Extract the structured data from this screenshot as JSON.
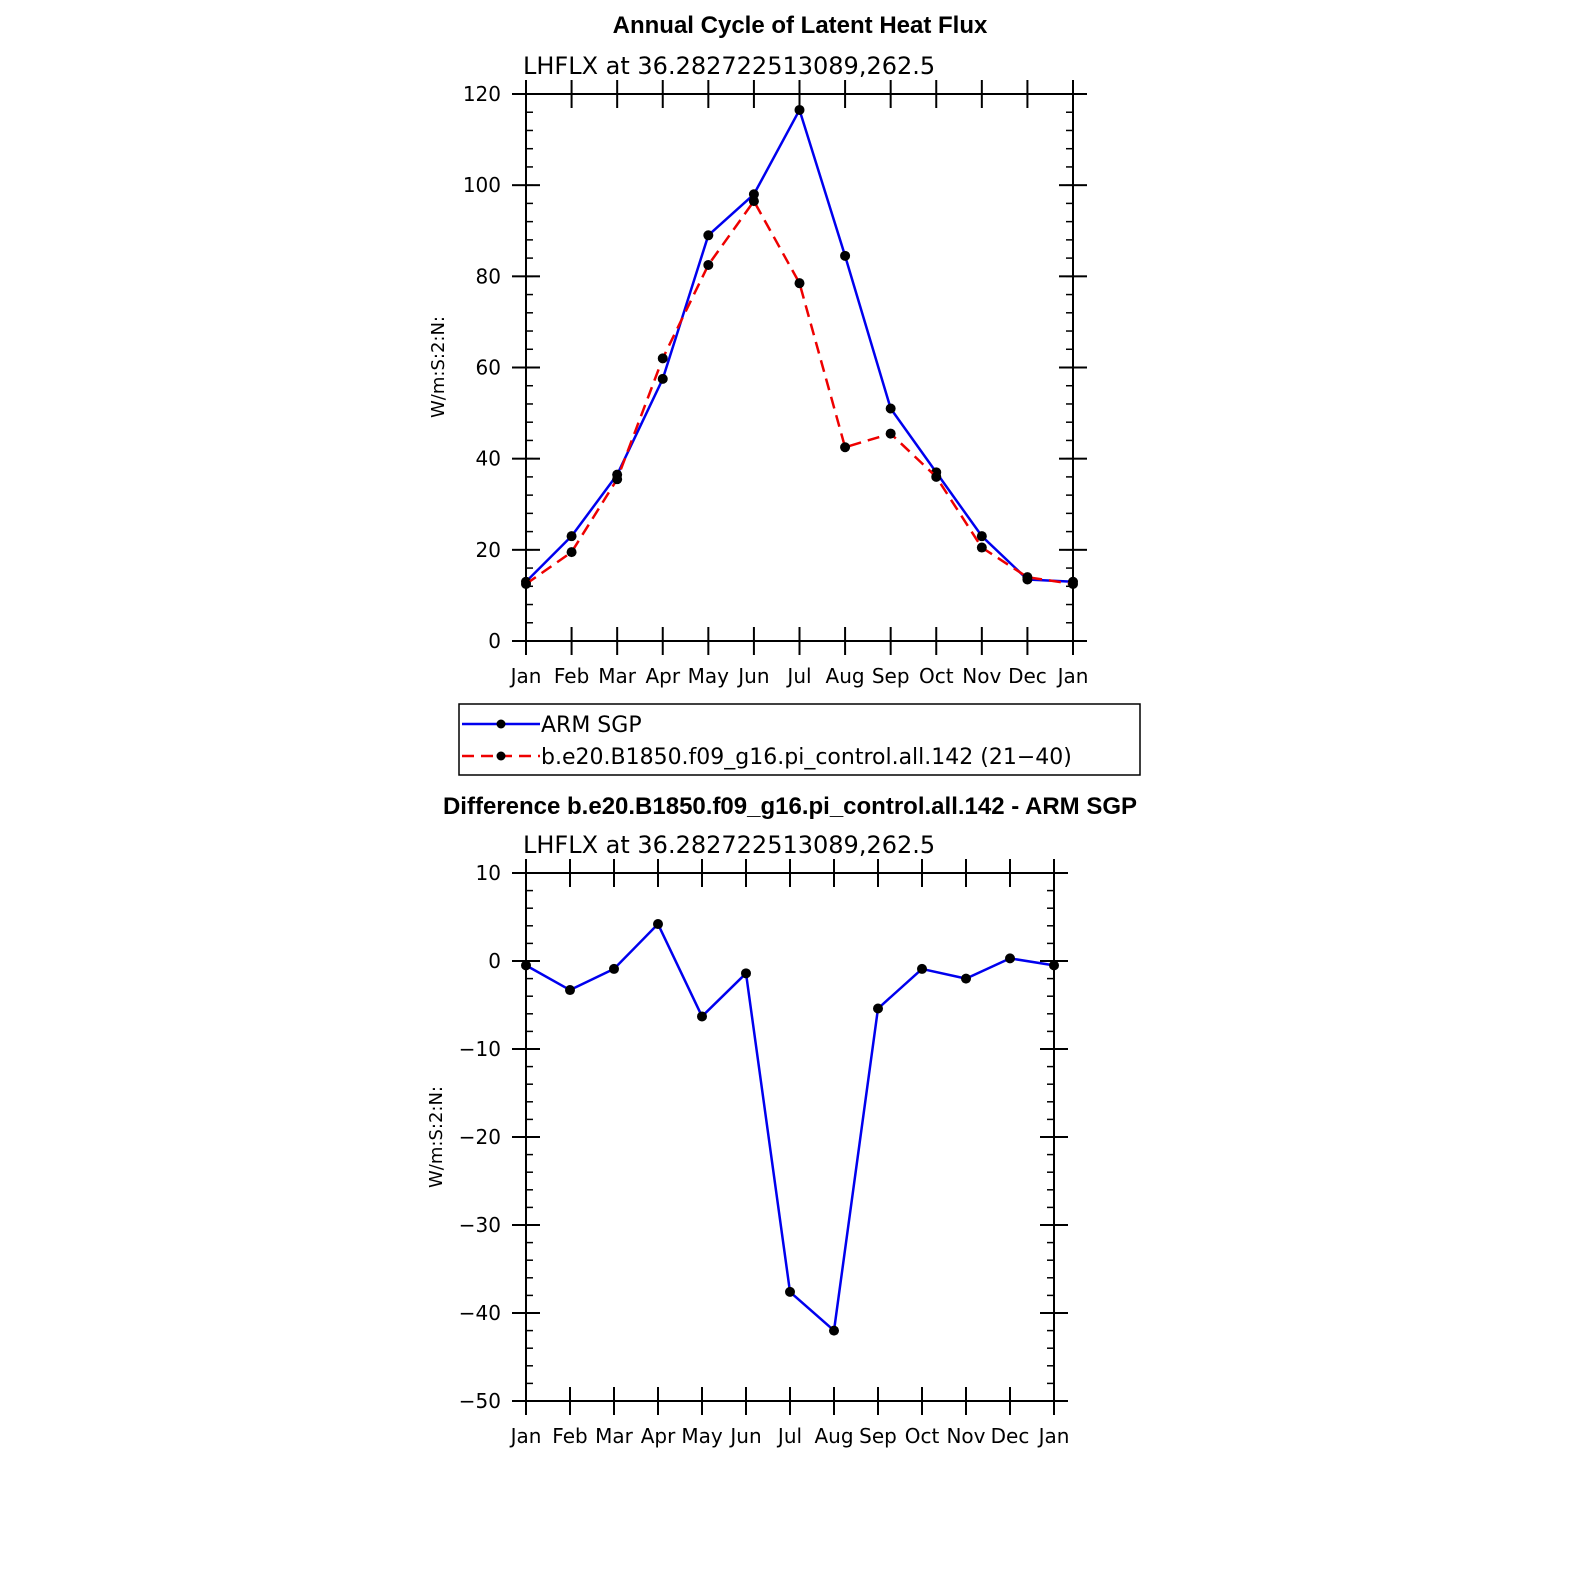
{
  "chart_data": [
    {
      "type": "line",
      "title": "Annual Cycle of Latent Heat Flux",
      "subtitle": "LHFLX at 36.282722513089,262.5",
      "ylabel": "W/m:S:2:N:",
      "xlabel": "",
      "ylim": [
        0,
        120
      ],
      "yticks": [
        "0",
        "20",
        "40",
        "60",
        "80",
        "100",
        "120"
      ],
      "categories": [
        "Jan",
        "Feb",
        "Mar",
        "Apr",
        "May",
        "Jun",
        "Jul",
        "Aug",
        "Sep",
        "Oct",
        "Nov",
        "Dec",
        "Jan"
      ],
      "legend_position": "bottom",
      "series": [
        {
          "name": "ARM SGP",
          "color": "#0000ee",
          "dash": "solid",
          "values": [
            13,
            23,
            36.5,
            57.5,
            89,
            98,
            116.5,
            84.5,
            51,
            37,
            23,
            13.5,
            13
          ]
        },
        {
          "name": "b.e20.B1850.f09_g16.pi_control.all.142 (21−40)",
          "color": "#ee0000",
          "dash": "dashed",
          "values": [
            12.5,
            19.5,
            35.5,
            62,
            82.5,
            96.5,
            78.5,
            42.5,
            45.5,
            36,
            20.5,
            14,
            12.5
          ]
        }
      ]
    },
    {
      "type": "line",
      "title": "Difference b.e20.B1850.f09_g16.pi_control.all.142 - ARM SGP",
      "subtitle": "LHFLX at 36.282722513089,262.5",
      "ylabel": "W/m:S:2:N:",
      "xlabel": "",
      "ylim": [
        -50,
        10
      ],
      "yticks": [
        "−50",
        "−40",
        "−30",
        "−20",
        "−10",
        "0",
        "10"
      ],
      "categories": [
        "Jan",
        "Feb",
        "Mar",
        "Apr",
        "May",
        "Jun",
        "Jul",
        "Aug",
        "Sep",
        "Oct",
        "Nov",
        "Dec",
        "Jan"
      ],
      "series": [
        {
          "color": "#0000ee",
          "dash": "solid",
          "values": [
            -0.5,
            -3.3,
            -0.9,
            4.2,
            -6.3,
            -1.4,
            -37.6,
            -42,
            -5.4,
            -0.9,
            -2,
            0.3,
            -0.5
          ]
        }
      ]
    }
  ]
}
